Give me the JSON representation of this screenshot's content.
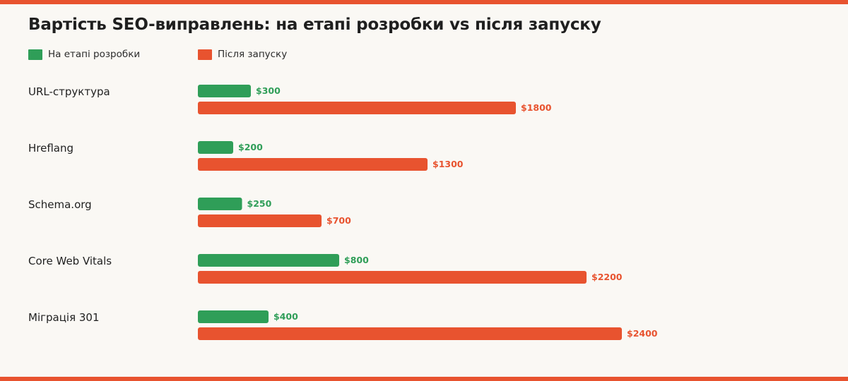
{
  "colors": {
    "accent": "#e8532f",
    "series_dev": "#2f9e58",
    "series_post": "#e8532f",
    "background": "#faf8f4"
  },
  "chart_data": {
    "type": "bar",
    "orientation": "horizontal",
    "title": "Вартість SEO-виправлень: на етапі розробки vs після запуску",
    "categories": [
      "URL-структура",
      "Hreflang",
      "Schema.org",
      "Core Web Vitals",
      "Міграція 301"
    ],
    "series": [
      {
        "name": "На етапі розробки",
        "values": [
          300,
          200,
          250,
          800,
          400
        ],
        "labels": [
          "$300",
          "$200",
          "$250",
          "$800",
          "$400"
        ]
      },
      {
        "name": "Після запуску",
        "values": [
          1800,
          1300,
          700,
          2200,
          2400
        ],
        "labels": [
          "$1800",
          "$1300",
          "$700",
          "$2200",
          "$2400"
        ]
      }
    ],
    "xlim": [
      0,
      2400
    ],
    "grid": false,
    "legend": "top-left"
  }
}
